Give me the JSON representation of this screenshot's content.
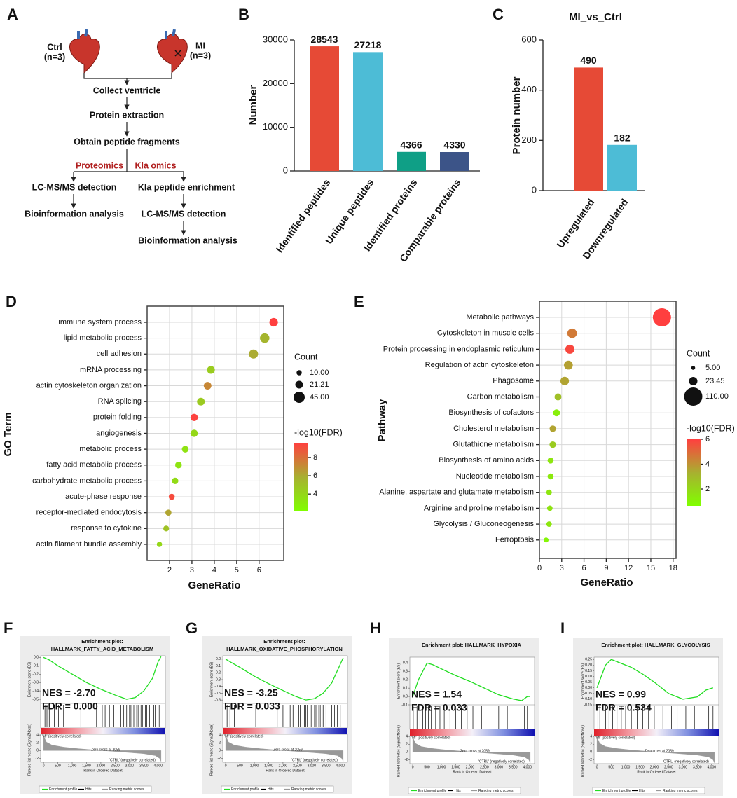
{
  "flowchart": {
    "panel": "A",
    "groups": [
      {
        "label": "Ctrl",
        "n": "(n=3)"
      },
      {
        "label": "MI",
        "n": "(n=3)"
      }
    ],
    "steps": [
      "Collect ventricle",
      "Protein extraction",
      "Obtain peptide fragments"
    ],
    "branches": [
      {
        "label": "Proteomics",
        "steps": [
          "LC-MS/MS detection",
          "Bioinformation analysis"
        ]
      },
      {
        "label": "Kla omics",
        "steps": [
          "Kla peptide enrichment",
          "LC-MS/MS detection",
          "Bioinformation analysis"
        ]
      }
    ]
  },
  "chart_data": [
    {
      "panel": "B",
      "type": "bar",
      "ylabel": "Number",
      "categories": [
        "Identified peptides",
        "Unique peptides",
        "Identified proteins",
        "Comparable proteins"
      ],
      "values": [
        28543,
        27218,
        4366,
        4330
      ],
      "colors": [
        "#e64a36",
        "#4dbcd6",
        "#0f9f86",
        "#3c5488"
      ],
      "ylim": [
        0,
        30000
      ],
      "yticks": [
        0,
        10000,
        20000,
        30000
      ]
    },
    {
      "panel": "C",
      "type": "bar",
      "title": "MI_vs_Ctrl",
      "ylabel": "Protein number",
      "categories": [
        "Upregulated",
        "Downregulated"
      ],
      "values": [
        490,
        182
      ],
      "colors": [
        "#e64a36",
        "#4dbcd6"
      ],
      "ylim": [
        0,
        600
      ],
      "yticks": [
        0,
        200,
        400,
        600
      ]
    },
    {
      "panel": "D",
      "type": "bubble",
      "ylabel": "GO Term",
      "xlabel": "GeneRatio",
      "categories": [
        "immune system process",
        "lipid metabolic process",
        "cell adhesion",
        "mRNA processing",
        "actin cytoskeleton organization",
        "RNA splicing",
        "protein folding",
        "angiogenesis",
        "metabolic process",
        "fatty acid metabolic process",
        "carbohydrate metabolic process",
        "acute-phase response",
        "receptor-mediated endocytosis",
        "response to cytokine",
        "actin filament bundle assembly"
      ],
      "values": [
        6.65,
        6.25,
        5.75,
        3.85,
        3.7,
        3.4,
        3.1,
        3.1,
        2.7,
        2.4,
        2.25,
        2.1,
        1.95,
        1.85,
        1.55
      ],
      "sizes": [
        26,
        32,
        30,
        22,
        21,
        21,
        19,
        19,
        16,
        16,
        15,
        13,
        13,
        12,
        10
      ],
      "fdr": [
        9.6,
        5.6,
        6.0,
        4.5,
        7.2,
        4.6,
        9.5,
        4.0,
        3.5,
        3.4,
        3.8,
        9.2,
        6.2,
        5.0,
        4.0
      ],
      "xlim": [
        1,
        7.1
      ],
      "xticks": [
        2,
        3,
        4,
        5,
        6
      ],
      "grid": true,
      "size_legend": {
        "title": "Count",
        "values": [
          10,
          21.21,
          45
        ],
        "value_labels": [
          "10.00",
          "21.21",
          "45.00"
        ]
      },
      "colorbar": {
        "title": "-log10(FDR)",
        "range": [
          2.1,
          9.6
        ],
        "ticks": [
          4,
          6,
          8
        ],
        "colors": [
          "#80ff00",
          "#a8b030",
          "#ff3f3f"
        ]
      }
    },
    {
      "panel": "E",
      "type": "bubble",
      "ylabel": "Pathway",
      "xlabel": "GeneRatio",
      "categories": [
        "Metabolic pathways",
        "Cytoskeleton in muscle cells",
        "Protein processing in endoplasmic reticulum",
        "Regulation of actin cytoskeleton",
        "Phagosome",
        "Carbon metabolism",
        "Biosynthesis of cofactors",
        "Cholesterol metabolism",
        "Glutathione metabolism",
        "Biosynthesis of amino acids",
        "Nucleotide metabolism",
        "Alanine, aspartate and glutamate metabolism",
        "Arginine and proline metabolism",
        "Glycolysis / Gluconeogenesis",
        "Ferroptosis"
      ],
      "values": [
        16.5,
        4.4,
        4.1,
        3.9,
        3.4,
        2.5,
        2.3,
        1.8,
        1.8,
        1.5,
        1.5,
        1.3,
        1.4,
        1.3,
        0.9
      ],
      "sizes": [
        110,
        30,
        28,
        26,
        24,
        16,
        16,
        14,
        14,
        12,
        12,
        10,
        10,
        10,
        8
      ],
      "fdr": [
        6.0,
        4.6,
        5.8,
        3.7,
        3.6,
        2.8,
        1.2,
        3.6,
        2.4,
        1.5,
        1.4,
        1.5,
        1.6,
        1.5,
        1.0
      ],
      "xlim": [
        0,
        18.4
      ],
      "xticks": [
        0,
        3,
        6,
        9,
        12,
        15,
        18
      ],
      "grid": true,
      "size_legend": {
        "title": "Count",
        "values": [
          5,
          23.45,
          110
        ],
        "value_labels": [
          "5.00",
          "23.45",
          "110.00"
        ]
      },
      "colorbar": {
        "title": "-log10(FDR)",
        "range": [
          0.65,
          6
        ],
        "ticks": [
          2,
          4,
          6
        ],
        "colors": [
          "#80ff00",
          "#a8b030",
          "#ff3f3f"
        ]
      }
    },
    {
      "panel": "F",
      "type": "gsea",
      "title": [
        "Enrichment plot:",
        "HALLMARK_FATTY_ACID_METABOLISM"
      ],
      "annotations": [
        "NES = -2.70",
        "FDR = 0.000"
      ],
      "ylabel": "Enrichment score (ES)",
      "y2label": "Ranked list metric (Signal2Noise)",
      "xlabel": "Rank in Ordered Dataset",
      "pos_label": "'MI' (positively correlated)",
      "neg_label": "'CTRL' (negatively correlated)",
      "zero_label": "Zero cross at 2059",
      "xlim": [
        -100,
        4250
      ],
      "xticks": [
        0,
        500,
        {
          "value": 1000,
          "label": "1,000"
        },
        {
          "value": 1500,
          "label": "1,500"
        },
        {
          "value": 2000,
          "label": "2,000"
        },
        {
          "value": 2500,
          "label": "2,500"
        },
        {
          "value": 3000,
          "label": "3,000"
        },
        {
          "value": 3500,
          "label": "3,500"
        },
        {
          "value": 4000,
          "label": "4,000"
        }
      ],
      "ylim": [
        -0.55,
        0.02
      ],
      "yticks": [
        {
          "value": 0,
          "label": "0.0"
        },
        -0.1,
        -0.2,
        -0.3,
        -0.4,
        -0.5
      ],
      "y2lim": [
        -3,
        4.2
      ],
      "y2ticks": [
        -2,
        0,
        2,
        4
      ],
      "series": [
        {
          "name": "Enrichment profile",
          "color": "#22dd22",
          "x": [
            0,
            200,
            500,
            1000,
            1500,
            2000,
            2500,
            2900,
            3200,
            3500,
            3800,
            4000,
            4100
          ],
          "values": [
            0,
            -0.03,
            -0.1,
            -0.2,
            -0.3,
            -0.38,
            -0.45,
            -0.5,
            -0.48,
            -0.4,
            -0.25,
            -0.05,
            0.01
          ]
        },
        {
          "name": "Hits",
          "color": "#000000",
          "x": [
            50,
            120,
            200,
            380,
            520,
            700,
            1300,
            1850,
            2050,
            2150,
            2300,
            2450,
            2600,
            2700,
            2800,
            2900,
            3000,
            3050,
            3150,
            3250,
            3300,
            3400,
            3450,
            3550,
            3600,
            3700,
            3750,
            3850,
            3900,
            4000,
            4050
          ]
        },
        {
          "name": "Ranking metric scores",
          "color": "#999999",
          "axis": "y2",
          "x": [
            0,
            100,
            300,
            700,
            1200,
            2059,
            2800,
            3500,
            3900,
            4050,
            4100
          ],
          "values": [
            3.8,
            2.2,
            1.4,
            0.9,
            0.5,
            0,
            -0.4,
            -0.8,
            -1.3,
            -2,
            -2.8
          ]
        }
      ]
    },
    {
      "panel": "G",
      "type": "gsea",
      "title": [
        "Enrichment plot:",
        "HALLMARK_OXIDATIVE_PHOSPHORYLATION"
      ],
      "annotations": [
        "NES = -3.25",
        "FDR = 0.033"
      ],
      "ylabel": "Enrichment score (ES)",
      "y2label": "Ranked list metric (Signal2Noise)",
      "xlabel": "Rank in Ordered Dataset",
      "pos_label": "'MI' (positively correlated)",
      "neg_label": "'CTRL' (negatively correlated)",
      "zero_label": "Zero cross at 2059",
      "xlim": [
        -100,
        4250
      ],
      "xticks": [
        0,
        500,
        {
          "value": 1000,
          "label": "1,000"
        },
        {
          "value": 1500,
          "label": "1,500"
        },
        {
          "value": 2000,
          "label": "2,000"
        },
        {
          "value": 2500,
          "label": "2,500"
        },
        {
          "value": 3000,
          "label": "3,000"
        },
        {
          "value": 3500,
          "label": "3,500"
        },
        {
          "value": 4000,
          "label": "4,000"
        }
      ],
      "ylim": [
        -0.65,
        0.05
      ],
      "yticks": [
        {
          "value": 0,
          "label": "0.0"
        },
        -0.1,
        -0.2,
        -0.3,
        -0.4,
        -0.5,
        -0.6
      ],
      "y2lim": [
        -3,
        4.2
      ],
      "y2ticks": [
        -2,
        0,
        2,
        4
      ],
      "series": [
        {
          "name": "Enrichment profile",
          "color": "#22dd22",
          "x": [
            0,
            200,
            500,
            1000,
            1500,
            2000,
            2400,
            2800,
            3100,
            3400,
            3700,
            3950,
            4100
          ],
          "values": [
            0,
            -0.05,
            -0.12,
            -0.25,
            -0.36,
            -0.46,
            -0.54,
            -0.6,
            -0.58,
            -0.5,
            -0.35,
            -0.12,
            0.02
          ]
        },
        {
          "name": "Hits",
          "color": "#000000",
          "x": [
            50,
            150,
            300,
            1050,
            1550,
            1800,
            2000,
            2250,
            2350,
            2450,
            2550,
            2600,
            2700,
            2750,
            2800,
            2850,
            2950,
            3000,
            3100,
            3150,
            3250,
            3300,
            3400,
            3500,
            3600,
            3700,
            3800,
            3900,
            4000
          ]
        },
        {
          "name": "Ranking metric scores",
          "color": "#999999",
          "axis": "y2",
          "x": [
            0,
            100,
            300,
            700,
            1200,
            2059,
            2800,
            3500,
            3900,
            4050,
            4100
          ],
          "values": [
            3.8,
            2.2,
            1.4,
            0.9,
            0.5,
            0,
            -0.4,
            -0.8,
            -1.3,
            -2,
            -2.8
          ]
        }
      ]
    },
    {
      "panel": "H",
      "type": "gsea",
      "title": [
        "Enrichment plot: HALLMARK_HYPOXIA"
      ],
      "annotations": [
        "NES = 1.54",
        "FDR = 0.033"
      ],
      "ylabel": "Enrichment score (ES)",
      "y2label": "Ranked list metric (Signal2Noise)",
      "xlabel": "Rank in Ordered Dataset",
      "pos_label": "'MI' (positively correlated)",
      "neg_label": "'CTRL' (negatively correlated)",
      "zero_label": "Zero cross at 2059",
      "xlim": [
        -100,
        4250
      ],
      "xticks": [
        0,
        500,
        {
          "value": 1000,
          "label": "1,000"
        },
        {
          "value": 1500,
          "label": "1,500"
        },
        {
          "value": 2000,
          "label": "2,000"
        },
        {
          "value": 2500,
          "label": "2,500"
        },
        {
          "value": 3000,
          "label": "3,000"
        },
        {
          "value": 3500,
          "label": "3,500"
        },
        {
          "value": 4000,
          "label": "4,000"
        }
      ],
      "ylim": [
        -0.1,
        0.47
      ],
      "yticks": [
        -0.1,
        {
          "value": 0,
          "label": "0.0"
        },
        0.1,
        0.2,
        0.3,
        0.4
      ],
      "y2lim": [
        -3,
        4.2
      ],
      "y2ticks": [
        -2,
        0,
        2,
        4
      ],
      "series": [
        {
          "name": "Enrichment profile",
          "color": "#22dd22",
          "x": [
            0,
            200,
            500,
            700,
            1000,
            1500,
            2000,
            2500,
            3000,
            3500,
            3800,
            4000,
            4100
          ],
          "values": [
            0,
            0.2,
            0.4,
            0.38,
            0.33,
            0.25,
            0.18,
            0.1,
            0.02,
            -0.03,
            -0.05,
            0,
            0
          ]
        },
        {
          "name": "Hits",
          "color": "#000000",
          "x": [
            20,
            80,
            150,
            250,
            350,
            450,
            550,
            650,
            800,
            950,
            1100,
            1300,
            1500,
            1700,
            1900,
            2100,
            2400,
            2700,
            3000,
            3300,
            3600,
            3900,
            4000
          ]
        },
        {
          "name": "Ranking metric scores",
          "color": "#999999",
          "axis": "y2",
          "x": [
            0,
            100,
            300,
            700,
            1200,
            2059,
            2800,
            3500,
            3900,
            4050,
            4100
          ],
          "values": [
            3.8,
            2.2,
            1.4,
            0.9,
            0.5,
            0,
            -0.4,
            -0.8,
            -1.3,
            -2,
            -2.8
          ]
        }
      ]
    },
    {
      "panel": "I",
      "type": "gsea",
      "title": [
        "Enrichment plot: HALLMARK_GLYCOLYSIS"
      ],
      "annotations": [
        "NES = 0.99",
        "FDR = 0.534"
      ],
      "ylabel": "Enrichment score (ES)",
      "y2label": "Ranked list metric (Signal2Noise)",
      "xlabel": "Rank in Ordered Dataset",
      "pos_label": "'MI' (positively correlated)",
      "neg_label": "'CTRL' (negatively correlated)",
      "zero_label": "Zero cross at 2059",
      "xlim": [
        -100,
        4250
      ],
      "xticks": [
        0,
        500,
        {
          "value": 1000,
          "label": "1,000"
        },
        {
          "value": 1500,
          "label": "1,500"
        },
        {
          "value": 2000,
          "label": "2,000"
        },
        {
          "value": 2500,
          "label": "2,500"
        },
        {
          "value": 3000,
          "label": "3,000"
        },
        {
          "value": 3500,
          "label": "3,500"
        },
        {
          "value": 4000,
          "label": "4,000"
        }
      ],
      "ylim": [
        -0.15,
        0.27
      ],
      "yticks": [
        {
          "value": -0.15,
          "label": "-0.15"
        },
        {
          "value": -0.1,
          "label": "-0.10"
        },
        {
          "value": -0.05,
          "label": "-0.05"
        },
        {
          "value": 0,
          "label": "0.00"
        },
        {
          "value": 0.05,
          "label": "0.05"
        },
        {
          "value": 0.1,
          "label": "0.10"
        },
        {
          "value": 0.15,
          "label": "0.15"
        },
        {
          "value": 0.2,
          "label": "0.20"
        },
        {
          "value": 0.25,
          "label": "0.25"
        }
      ],
      "y2lim": [
        -3,
        4.2
      ],
      "y2ticks": [
        -2,
        0,
        2,
        4
      ],
      "series": [
        {
          "name": "Enrichment profile",
          "color": "#22dd22",
          "x": [
            0,
            300,
            500,
            800,
            1200,
            1600,
            2000,
            2500,
            3000,
            3500,
            3800,
            4050
          ],
          "values": [
            0,
            0.2,
            0.25,
            0.22,
            0.18,
            0.12,
            0.05,
            -0.05,
            -0.1,
            -0.08,
            -0.02,
            0
          ]
        },
        {
          "name": "Hits",
          "color": "#000000",
          "x": [
            30,
            100,
            180,
            300,
            420,
            550,
            700,
            850,
            1000,
            1200,
            1400,
            1600,
            1800,
            2000,
            2300,
            2600,
            2800,
            3100,
            3400,
            3700,
            3900,
            4050
          ]
        },
        {
          "name": "Ranking metric scores",
          "color": "#999999",
          "axis": "y2",
          "x": [
            0,
            100,
            300,
            700,
            1200,
            2059,
            2800,
            3500,
            3900,
            4050,
            4100
          ],
          "values": [
            3.8,
            2.2,
            1.4,
            0.9,
            0.5,
            0,
            -0.4,
            -0.8,
            -1.3,
            -2,
            -2.8
          ]
        }
      ]
    }
  ]
}
